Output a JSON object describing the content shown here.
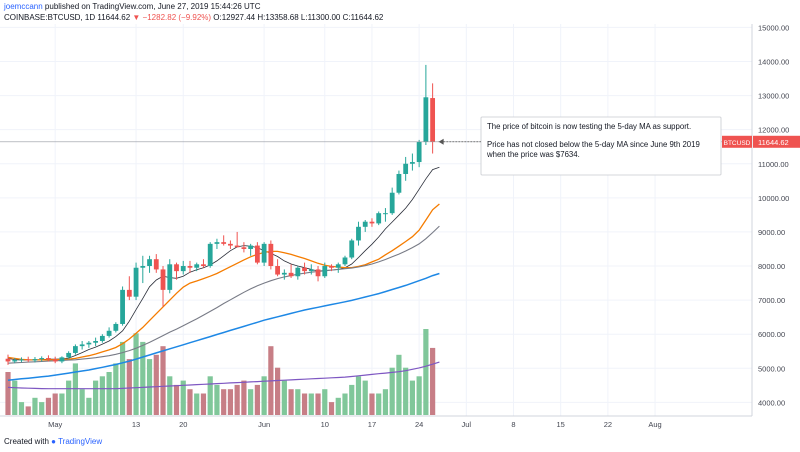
{
  "header": {
    "author": "joemccann",
    "published": "published on TradingView.com, June 27, 2019 15:44:26 UTC",
    "symbol": "COINBASE:BTCUSD, 1D",
    "last": "11644.62",
    "change": "−1282.82 (−9.92%)",
    "ohlc": "O:12927.44 H:13358.68 L:11300.00 C:11644.62"
  },
  "footer": {
    "created_with": "Created with",
    "brand": "TradingView",
    "logo_icon": "tradingview-logo-icon"
  },
  "colors": {
    "up": "#26a69a",
    "down": "#ef5350",
    "vol_up": "#80c79a",
    "vol_down": "#c77e86",
    "ma5": "#2a2e39",
    "ma10": "#f57c00",
    "ma20": "#787b86",
    "ma50": "#1e88e5",
    "vol_ma": "#7e57c2"
  },
  "chart_data": {
    "type": "candlestick",
    "symbol": "COINBASE:BTCUSD",
    "interval": "1D",
    "ylim": [
      3600,
      15100
    ],
    "yticks": [
      4000,
      5000,
      6000,
      7000,
      8000,
      9000,
      10000,
      11000,
      12000,
      13000,
      14000,
      15000
    ],
    "ytick_labels": [
      "4000.00",
      "5000.00",
      "6000.00",
      "7000.00",
      "8000.00",
      "9000.00",
      "10000.00",
      "11000.00",
      "12000.00",
      "13000.00",
      "14000.00",
      "15000.00"
    ],
    "xticks": [
      {
        "index": 7,
        "label": "May"
      },
      {
        "index": 19,
        "label": "13"
      },
      {
        "index": 26,
        "label": "20"
      },
      {
        "index": 38,
        "label": "Jun"
      },
      {
        "index": 47,
        "label": "10"
      },
      {
        "index": 54,
        "label": "17"
      },
      {
        "index": 61,
        "label": "24"
      },
      {
        "index": 68,
        "label": "Jul"
      },
      {
        "index": 75,
        "label": "8"
      },
      {
        "index": 82,
        "label": "15"
      },
      {
        "index": 89,
        "label": "22"
      },
      {
        "index": 96,
        "label": "Aug"
      }
    ],
    "x_count": 107,
    "last_price_label": "BTCUSD",
    "last_price": "11644.62",
    "candles": [
      {
        "o": 5280,
        "h": 5400,
        "l": 5100,
        "c": 5200,
        "v": 0.5
      },
      {
        "o": 5200,
        "h": 5300,
        "l": 5150,
        "c": 5240,
        "v": 0.4
      },
      {
        "o": 5240,
        "h": 5320,
        "l": 5180,
        "c": 5260,
        "v": 0.15
      },
      {
        "o": 5260,
        "h": 5340,
        "l": 5180,
        "c": 5230,
        "v": 0.1
      },
      {
        "o": 5230,
        "h": 5330,
        "l": 5170,
        "c": 5270,
        "v": 0.2
      },
      {
        "o": 5270,
        "h": 5350,
        "l": 5200,
        "c": 5300,
        "v": 0.15
      },
      {
        "o": 5300,
        "h": 5380,
        "l": 5200,
        "c": 5260,
        "v": 0.2
      },
      {
        "o": 5260,
        "h": 5340,
        "l": 5150,
        "c": 5200,
        "v": 0.25
      },
      {
        "o": 5200,
        "h": 5350,
        "l": 5150,
        "c": 5320,
        "v": 0.25
      },
      {
        "o": 5320,
        "h": 5500,
        "l": 5280,
        "c": 5450,
        "v": 0.4
      },
      {
        "o": 5450,
        "h": 5700,
        "l": 5400,
        "c": 5650,
        "v": 0.6
      },
      {
        "o": 5650,
        "h": 5800,
        "l": 5550,
        "c": 5700,
        "v": 0.3
      },
      {
        "o": 5700,
        "h": 5800,
        "l": 5600,
        "c": 5750,
        "v": 0.2
      },
      {
        "o": 5750,
        "h": 5900,
        "l": 5650,
        "c": 5800,
        "v": 0.4
      },
      {
        "o": 5800,
        "h": 6000,
        "l": 5750,
        "c": 5950,
        "v": 0.45
      },
      {
        "o": 5950,
        "h": 6200,
        "l": 5900,
        "c": 6100,
        "v": 0.5
      },
      {
        "o": 6100,
        "h": 6350,
        "l": 6050,
        "c": 6300,
        "v": 0.6
      },
      {
        "o": 6300,
        "h": 7400,
        "l": 6250,
        "c": 7300,
        "v": 0.85
      },
      {
        "o": 7300,
        "h": 7700,
        "l": 7000,
        "c": 7100,
        "v": 0.65
      },
      {
        "o": 7100,
        "h": 8100,
        "l": 7000,
        "c": 7950,
        "v": 0.95
      },
      {
        "o": 7950,
        "h": 8300,
        "l": 7500,
        "c": 8000,
        "v": 0.85
      },
      {
        "o": 8000,
        "h": 8300,
        "l": 7800,
        "c": 8200,
        "v": 0.65
      },
      {
        "o": 8200,
        "h": 8350,
        "l": 7800,
        "c": 7900,
        "v": 0.7
      },
      {
        "o": 7900,
        "h": 8000,
        "l": 6800,
        "c": 7300,
        "v": 0.8
      },
      {
        "o": 7300,
        "h": 8200,
        "l": 7200,
        "c": 8050,
        "v": 0.45
      },
      {
        "o": 8050,
        "h": 8100,
        "l": 7600,
        "c": 7850,
        "v": 0.35
      },
      {
        "o": 7850,
        "h": 8150,
        "l": 7750,
        "c": 8000,
        "v": 0.4
      },
      {
        "o": 8000,
        "h": 8150,
        "l": 7800,
        "c": 7950,
        "v": 0.3
      },
      {
        "o": 7950,
        "h": 8100,
        "l": 7850,
        "c": 8050,
        "v": 0.25
      },
      {
        "o": 8050,
        "h": 8200,
        "l": 7950,
        "c": 8000,
        "v": 0.25
      },
      {
        "o": 8000,
        "h": 8700,
        "l": 7950,
        "c": 8650,
        "v": 0.45
      },
      {
        "o": 8650,
        "h": 8800,
        "l": 8500,
        "c": 8700,
        "v": 0.35
      },
      {
        "o": 8700,
        "h": 8900,
        "l": 8600,
        "c": 8650,
        "v": 0.3
      },
      {
        "o": 8650,
        "h": 8750,
        "l": 8500,
        "c": 8600,
        "v": 0.3
      },
      {
        "o": 8600,
        "h": 9000,
        "l": 8550,
        "c": 8550,
        "v": 0.35
      },
      {
        "o": 8550,
        "h": 8700,
        "l": 8400,
        "c": 8500,
        "v": 0.4
      },
      {
        "o": 8500,
        "h": 8650,
        "l": 8300,
        "c": 8600,
        "v": 0.3
      },
      {
        "o": 8600,
        "h": 8700,
        "l": 8050,
        "c": 8100,
        "v": 0.35
      },
      {
        "o": 8100,
        "h": 8700,
        "l": 8000,
        "c": 8650,
        "v": 0.45
      },
      {
        "o": 8650,
        "h": 8750,
        "l": 7900,
        "c": 8000,
        "v": 0.8
      },
      {
        "o": 8000,
        "h": 8200,
        "l": 7700,
        "c": 7750,
        "v": 0.55
      },
      {
        "o": 7750,
        "h": 7900,
        "l": 7600,
        "c": 7800,
        "v": 0.4
      },
      {
        "o": 7800,
        "h": 8050,
        "l": 7650,
        "c": 7700,
        "v": 0.3
      },
      {
        "o": 7700,
        "h": 8000,
        "l": 7600,
        "c": 7950,
        "v": 0.3
      },
      {
        "o": 7950,
        "h": 8100,
        "l": 7750,
        "c": 7850,
        "v": 0.25
      },
      {
        "o": 7850,
        "h": 8050,
        "l": 7750,
        "c": 7900,
        "v": 0.25
      },
      {
        "o": 7900,
        "h": 8000,
        "l": 7550,
        "c": 7700,
        "v": 0.25
      },
      {
        "o": 7700,
        "h": 8100,
        "l": 7650,
        "c": 8000,
        "v": 0.3
      },
      {
        "o": 8000,
        "h": 8050,
        "l": 7850,
        "c": 7950,
        "v": 0.15
      },
      {
        "o": 7950,
        "h": 8100,
        "l": 7800,
        "c": 8050,
        "v": 0.2
      },
      {
        "o": 8050,
        "h": 8300,
        "l": 8000,
        "c": 8250,
        "v": 0.25
      },
      {
        "o": 8250,
        "h": 8800,
        "l": 8200,
        "c": 8750,
        "v": 0.35
      },
      {
        "o": 8750,
        "h": 9300,
        "l": 8600,
        "c": 9150,
        "v": 0.45
      },
      {
        "o": 9150,
        "h": 9350,
        "l": 9000,
        "c": 9300,
        "v": 0.4
      },
      {
        "o": 9300,
        "h": 9400,
        "l": 9150,
        "c": 9250,
        "v": 0.25
      },
      {
        "o": 9250,
        "h": 9600,
        "l": 9200,
        "c": 9550,
        "v": 0.25
      },
      {
        "o": 9550,
        "h": 9700,
        "l": 9300,
        "c": 9550,
        "v": 0.3
      },
      {
        "o": 9550,
        "h": 10300,
        "l": 9500,
        "c": 10150,
        "v": 0.55
      },
      {
        "o": 10150,
        "h": 10800,
        "l": 10100,
        "c": 10700,
        "v": 0.7
      },
      {
        "o": 10700,
        "h": 11200,
        "l": 10500,
        "c": 11000,
        "v": 0.55
      },
      {
        "o": 11000,
        "h": 11300,
        "l": 10800,
        "c": 11050,
        "v": 0.4
      },
      {
        "o": 11050,
        "h": 11700,
        "l": 10900,
        "c": 11650,
        "v": 0.45
      },
      {
        "o": 11650,
        "h": 13900,
        "l": 11550,
        "c": 12950,
        "v": 1.0
      },
      {
        "o": 12927.44,
        "h": 13358.68,
        "l": 11300,
        "c": 11644.62,
        "v": 0.78
      }
    ],
    "ma_series": [
      {
        "period": 5,
        "values": [
          5290,
          5255,
          5240,
          5245,
          5245,
          5255,
          5265,
          5270,
          5275,
          5300,
          5375,
          5460,
          5550,
          5620,
          5710,
          5800,
          5930,
          6100,
          6380,
          6720,
          7050,
          7390,
          7590,
          7700,
          7660,
          7640,
          7700,
          7820,
          7890,
          7950,
          8030,
          8150,
          8300,
          8450,
          8560,
          8600,
          8580,
          8540,
          8450,
          8370,
          8280,
          8150,
          8060,
          8000,
          7950,
          7900,
          7850,
          7870,
          7880,
          7900,
          7950,
          8060,
          8250,
          8450,
          8640,
          8850,
          9090,
          9290,
          9490,
          9700,
          9950,
          10250,
          10560,
          10830,
          10900
        ]
      },
      {
        "period": 10,
        "values": [
          5320,
          5290,
          5260,
          5250,
          5245,
          5245,
          5250,
          5255,
          5260,
          5265,
          5290,
          5330,
          5370,
          5420,
          5480,
          5540,
          5610,
          5720,
          5860,
          6030,
          6200,
          6400,
          6600,
          6800,
          7000,
          7200,
          7380,
          7500,
          7560,
          7630,
          7700,
          7780,
          7880,
          7980,
          8080,
          8180,
          8270,
          8340,
          8400,
          8430,
          8430,
          8390,
          8340,
          8280,
          8220,
          8150,
          8080,
          8020,
          7990,
          7970,
          7950,
          7950,
          7990,
          8040,
          8120,
          8200,
          8330,
          8450,
          8580,
          8720,
          8860,
          9050,
          9350,
          9650,
          9820
        ]
      },
      {
        "period": 20,
        "values": [
          5150,
          5160,
          5170,
          5180,
          5190,
          5200,
          5210,
          5220,
          5230,
          5240,
          5250,
          5270,
          5290,
          5310,
          5340,
          5370,
          5410,
          5460,
          5520,
          5590,
          5670,
          5760,
          5860,
          5960,
          6060,
          6150,
          6250,
          6350,
          6450,
          6560,
          6670,
          6780,
          6900,
          7010,
          7120,
          7230,
          7330,
          7420,
          7500,
          7570,
          7630,
          7680,
          7720,
          7760,
          7790,
          7820,
          7840,
          7860,
          7880,
          7900,
          7920,
          7940,
          7970,
          8010,
          8060,
          8120,
          8190,
          8270,
          8350,
          8440,
          8540,
          8650,
          8800,
          8980,
          9170
        ]
      },
      {
        "period": 50,
        "values": [
          4650,
          4670,
          4690,
          4710,
          4730,
          4750,
          4770,
          4800,
          4830,
          4860,
          4890,
          4920,
          4950,
          4990,
          5030,
          5070,
          5110,
          5160,
          5210,
          5270,
          5330,
          5390,
          5450,
          5510,
          5570,
          5630,
          5690,
          5750,
          5810,
          5870,
          5930,
          5990,
          6050,
          6110,
          6170,
          6230,
          6290,
          6350,
          6410,
          6460,
          6510,
          6560,
          6610,
          6660,
          6710,
          6750,
          6790,
          6830,
          6870,
          6910,
          6950,
          6990,
          7040,
          7090,
          7140,
          7190,
          7250,
          7310,
          7370,
          7430,
          7500,
          7570,
          7640,
          7720,
          7780
        ]
      },
      {
        "period": "vol",
        "values": [
          4440,
          4430,
          4420,
          4415,
          4410,
          4405,
          4400,
          4400,
          4400,
          4400,
          4400,
          4400,
          4400,
          4400,
          4400,
          4400,
          4400,
          4410,
          4420,
          4430,
          4440,
          4450,
          4460,
          4470,
          4480,
          4490,
          4500,
          4510,
          4520,
          4530,
          4540,
          4550,
          4560,
          4570,
          4580,
          4590,
          4600,
          4610,
          4620,
          4630,
          4640,
          4650,
          4660,
          4670,
          4680,
          4690,
          4700,
          4710,
          4720,
          4730,
          4740,
          4760,
          4780,
          4800,
          4820,
          4840,
          4860,
          4880,
          4900,
          4930,
          4970,
          5010,
          5060,
          5120,
          5180
        ]
      }
    ],
    "annotation": {
      "lines": [
        "The price of bitcoin is now testing the 5-day MA as support.",
        "Price has not closed below the 5-day MA since June 9th 2019",
        "when the price was $7634."
      ]
    }
  }
}
